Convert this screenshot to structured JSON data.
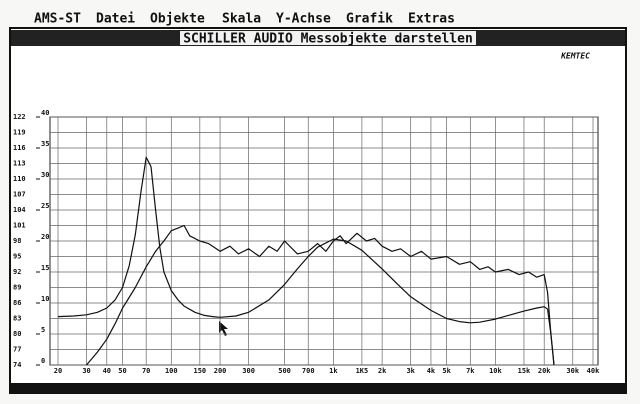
{
  "menu": [
    "AMS-ST",
    "Datei",
    "Objekte",
    "Skala",
    "Y-Achse",
    "Grafik",
    "Extras"
  ],
  "window_title": "SCHILLER AUDIO Messobjekte darstellen",
  "brand": "KEMTEC",
  "chart_data": {
    "type": "line",
    "xscale": "log",
    "grid": true,
    "xlim": [
      20,
      40000
    ],
    "xticks": [
      20,
      30,
      40,
      50,
      70,
      100,
      150,
      200,
      300,
      500,
      700,
      {
        "value": 1000,
        "label": "1k"
      },
      {
        "value": 1500,
        "label": "1K5"
      },
      {
        "value": 2000,
        "label": "2k"
      },
      {
        "value": 3000,
        "label": "3k"
      },
      {
        "value": 4000,
        "label": "4k"
      },
      {
        "value": 5000,
        "label": "5k"
      },
      {
        "value": 7000,
        "label": "7k"
      },
      {
        "value": 10000,
        "label": "10k"
      },
      {
        "value": 15000,
        "label": "15k"
      },
      {
        "value": 20000,
        "label": "20k"
      },
      {
        "value": 30000,
        "label": "30k"
      },
      {
        "value": 40000,
        "label": "40k"
      }
    ],
    "ylim": [
      74,
      122
    ],
    "yticks": [
      74,
      77,
      80,
      83,
      86,
      89,
      92,
      95,
      98,
      101,
      104,
      107,
      110,
      113,
      116,
      119,
      122
    ],
    "y2lim": [
      0,
      40
    ],
    "y2ticks": [
      0,
      5,
      10,
      15,
      20,
      25,
      30,
      35,
      40
    ],
    "color": "#111111",
    "series": [
      {
        "axis": "y2",
        "x": [
          20,
          25,
          30,
          35,
          40,
          45,
          50,
          55,
          60,
          65,
          70,
          75,
          80,
          85,
          90,
          100,
          110,
          120,
          140,
          160,
          180,
          200,
          250,
          300,
          400,
          500,
          600,
          700,
          800,
          1000,
          1200,
          1500,
          2000,
          2500,
          3000,
          4000,
          5000,
          6000,
          7000,
          8000,
          10000,
          12000,
          15000,
          18000,
          20000,
          21000,
          22000,
          23000
        ],
        "values": [
          7.8,
          7.9,
          8.1,
          8.5,
          9.2,
          10.5,
          12.5,
          16,
          21,
          28,
          33.5,
          32,
          25,
          19,
          15,
          12,
          10.5,
          9.5,
          8.5,
          8,
          7.8,
          7.7,
          7.9,
          8.5,
          10.5,
          13,
          15.5,
          17.5,
          19,
          20.3,
          20,
          18.5,
          15.5,
          13,
          11,
          8.8,
          7.5,
          7,
          6.8,
          6.9,
          7.4,
          8,
          8.7,
          9.2,
          9.4,
          9,
          5,
          0
        ]
      },
      {
        "axis": "y",
        "x": [
          30,
          35,
          40,
          45,
          50,
          60,
          70,
          80,
          90,
          100,
          110,
          120,
          130,
          150,
          170,
          200,
          230,
          260,
          300,
          350,
          400,
          450,
          500,
          600,
          700,
          800,
          900,
          1000,
          1100,
          1200,
          1400,
          1600,
          1800,
          2000,
          2300,
          2600,
          3000,
          3500,
          4000,
          5000,
          6000,
          7000,
          8000,
          9000,
          10000,
          12000,
          14000,
          16000,
          18000,
          20000,
          21000,
          22000,
          23000
        ],
        "values": [
          74,
          76.5,
          79,
          82,
          85,
          89,
          93,
          96,
          98,
          100,
          100.5,
          101,
          99,
          98,
          97.5,
          96,
          97,
          95.5,
          96.5,
          95,
          97,
          96,
          98,
          95.5,
          96,
          97.5,
          96,
          98,
          99,
          97.5,
          99.5,
          98,
          98.5,
          97,
          96,
          96.5,
          95,
          96,
          94.5,
          95,
          93.5,
          94,
          92.5,
          93,
          92,
          92.5,
          91.5,
          92,
          91,
          91.5,
          88,
          80,
          74
        ]
      }
    ]
  }
}
